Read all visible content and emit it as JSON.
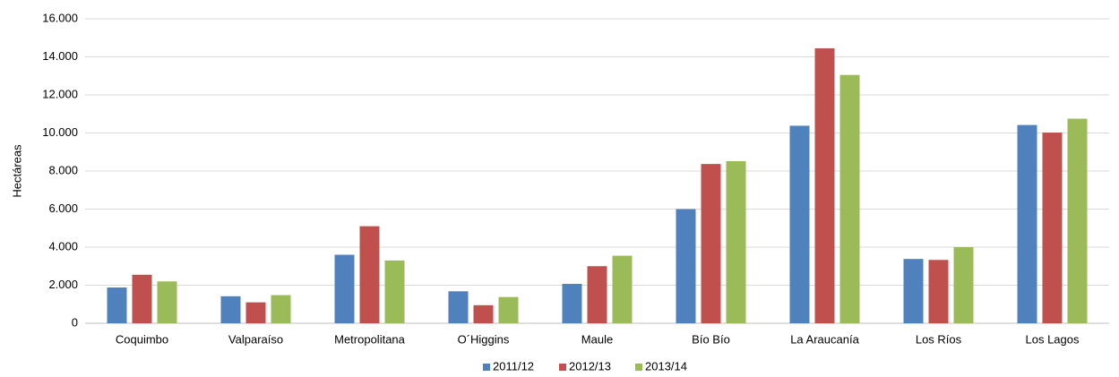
{
  "chart_data": {
    "type": "bar",
    "y_label": "Hectáreas",
    "categories": [
      "Coquimbo",
      "Valparaíso",
      "Metropolitana",
      "O´Higgins",
      "Maule",
      "Bío Bío",
      "La Araucanía",
      "Los Ríos",
      "Los Lagos"
    ],
    "series": [
      {
        "name": "2011/12",
        "color": "#4f81bd",
        "values": [
          1880,
          1420,
          3600,
          1680,
          2070,
          6000,
          10380,
          3380,
          10420
        ]
      },
      {
        "name": "2012/13",
        "color": "#c0504d",
        "values": [
          2550,
          1100,
          5100,
          950,
          3000,
          8370,
          14450,
          3330,
          10020
        ]
      },
      {
        "name": "2013/14",
        "color": "#9bbb59",
        "values": [
          2200,
          1480,
          3300,
          1380,
          3550,
          8520,
          13050,
          4000,
          10750
        ]
      }
    ],
    "ylim": [
      0,
      16000
    ],
    "yticks": [
      0,
      {
        "value": 2000,
        "label": "2.000"
      },
      {
        "value": 4000,
        "label": "4.000"
      },
      {
        "value": 6000,
        "label": "6.000"
      },
      {
        "value": 8000,
        "label": "8.000"
      },
      {
        "value": 10000,
        "label": "10.000"
      },
      {
        "value": 12000,
        "label": "12.000"
      },
      {
        "value": 14000,
        "label": "14.000"
      },
      {
        "value": 16000,
        "label": "16.000"
      }
    ],
    "grid": true,
    "legend": "bottom"
  }
}
